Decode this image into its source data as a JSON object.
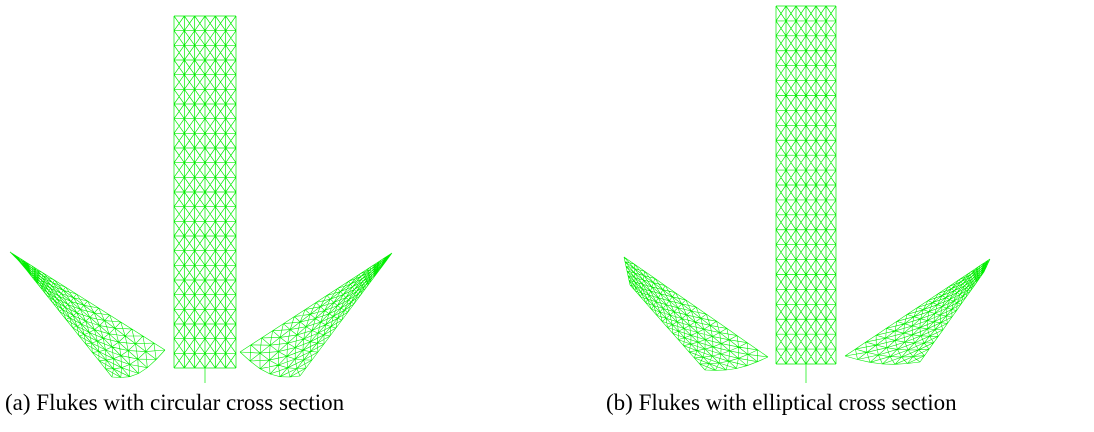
{
  "figures": [
    {
      "caption": "(a) Flukes with circular cross section"
    },
    {
      "caption": "(b) Flukes with elliptical cross section"
    }
  ]
}
